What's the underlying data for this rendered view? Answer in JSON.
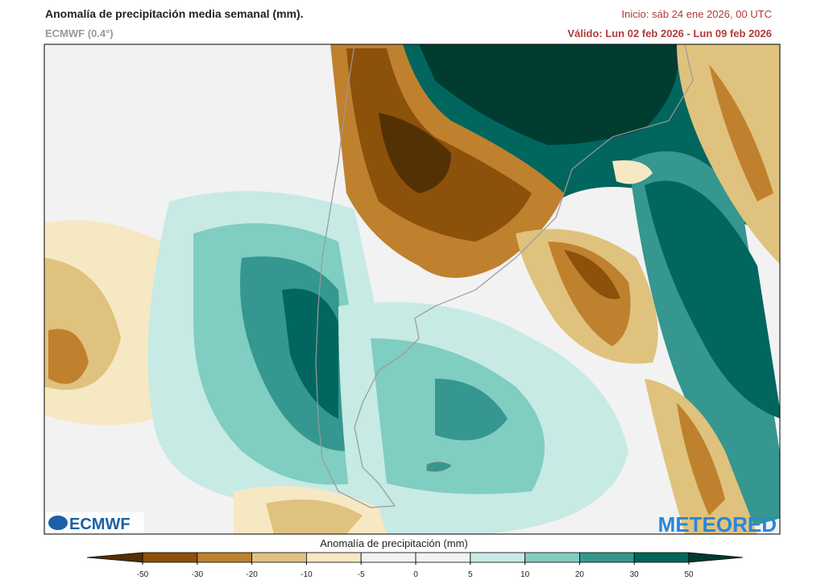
{
  "header": {
    "title": "Anomalía de precipitación media semanal (mm).",
    "model": "ECMWF (0.4°)",
    "init": "Inicio:  sáb 24 ene 2026, 00 UTC",
    "valid": "Válido: Lun 02 feb 2026 - Lun 09 feb 2026"
  },
  "map": {
    "logo_left": "ECMWF",
    "logo_right": "METEORED"
  },
  "colorbar": {
    "title": "Anomalía de precipitación (mm)",
    "ticks": [
      -50,
      -30,
      -20,
      -10,
      -5,
      0,
      5,
      10,
      20,
      30,
      50
    ],
    "colors": [
      "#543005",
      "#8c510a",
      "#bf812d",
      "#dfc27d",
      "#f6e8c3",
      "#f2f2f2",
      "#f2f2f2",
      "#c7eae5",
      "#80cdc1",
      "#35978f",
      "#01665e",
      "#003c30"
    ]
  }
}
